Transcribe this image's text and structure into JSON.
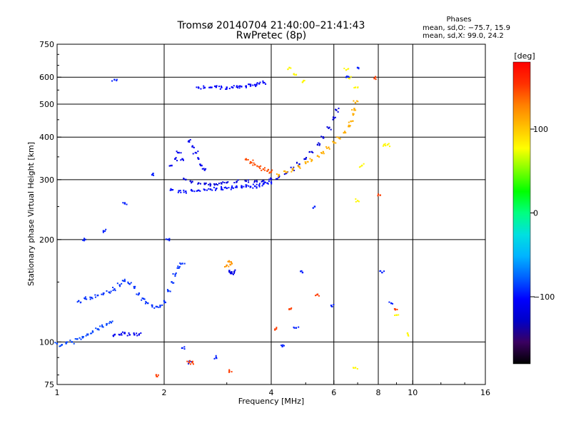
{
  "chart_data": {
    "type": "scatter",
    "title": "Tromsø 20140704 21:40:00–21:41:43",
    "subtitle": "RwPretec (8p)",
    "xlabel": "Frequency [MHz]",
    "ylabel": "Stationary phase Virtual Height [km]",
    "xscale": "log",
    "yscale": "log",
    "xlim": [
      1,
      16
    ],
    "ylim": [
      75,
      750
    ],
    "x_ticks": [
      1,
      2,
      4,
      6,
      8,
      10,
      16
    ],
    "x_tick_labels": [
      "1",
      "2",
      "4",
      "6",
      "8",
      "10",
      "16"
    ],
    "x_grid": [
      2,
      4,
      6,
      8,
      10
    ],
    "y_ticks": [
      75,
      100,
      200,
      300,
      400,
      500,
      600,
      750
    ],
    "y_tick_labels": [
      "75",
      "100",
      "200",
      "300",
      "400",
      "500",
      "600",
      "750"
    ],
    "y_grid": [
      100,
      200,
      300,
      400,
      500,
      600
    ],
    "grid": true,
    "stats": {
      "heading": "Phases",
      "line1": "mean, sd,O: −75.7, 15.9",
      "line2": "mean, sd,X:  99.0, 24.2"
    },
    "colorbar": {
      "label": "[deg]",
      "range": [
        -180,
        180
      ],
      "ticks": [
        100,
        0,
        -100
      ],
      "tick_labels": [
        "100",
        "0",
        "−100"
      ],
      "colors": [
        "#000000",
        "#3a0060",
        "#0000c8",
        "#0000ff",
        "#0060ff",
        "#00b4ff",
        "#00e0e0",
        "#00ff80",
        "#00ff00",
        "#80ff00",
        "#ffff00",
        "#ffc000",
        "#ff8000",
        "#ff3000",
        "#ff0000"
      ]
    },
    "series": [
      {
        "name": "",
        "note": "low band near 100 km",
        "color_phase": -85,
        "points": [
          [
            1.0,
            99
          ],
          [
            1.03,
            98
          ],
          [
            1.06,
            99
          ],
          [
            1.1,
            100
          ],
          [
            1.14,
            102
          ],
          [
            1.18,
            103
          ],
          [
            1.22,
            105
          ],
          [
            1.26,
            107
          ],
          [
            1.3,
            109
          ],
          [
            1.34,
            111
          ],
          [
            1.38,
            113
          ],
          [
            1.42,
            114
          ]
        ]
      },
      {
        "name": "",
        "color_phase": -90,
        "points": [
          [
            1.15,
            132
          ],
          [
            1.2,
            134
          ],
          [
            1.25,
            135
          ],
          [
            1.3,
            137
          ],
          [
            1.35,
            139
          ],
          [
            1.4,
            140
          ],
          [
            1.45,
            143
          ],
          [
            1.5,
            147
          ],
          [
            1.55,
            151
          ],
          [
            1.6,
            148
          ],
          [
            1.65,
            144
          ],
          [
            1.7,
            139
          ],
          [
            1.75,
            134
          ],
          [
            1.8,
            130
          ],
          [
            1.85,
            128
          ],
          [
            1.9,
            127
          ],
          [
            1.95,
            128
          ],
          [
            2.0,
            132
          ],
          [
            2.05,
            141
          ],
          [
            2.1,
            150
          ],
          [
            2.15,
            158
          ],
          [
            2.2,
            165
          ],
          [
            2.25,
            170
          ]
        ]
      },
      {
        "name": "",
        "color_phase": -110,
        "points": [
          [
            1.45,
            105
          ],
          [
            1.5,
            105
          ],
          [
            1.55,
            106
          ],
          [
            1.6,
            105
          ],
          [
            1.65,
            105
          ],
          [
            1.7,
            105
          ]
        ]
      },
      {
        "name": "",
        "note": "F-layer trace near 270-300 km",
        "color_phase": -100,
        "points": [
          [
            2.1,
            280
          ],
          [
            2.2,
            278
          ],
          [
            2.3,
            277
          ],
          [
            2.4,
            278
          ],
          [
            2.5,
            279
          ],
          [
            2.6,
            280
          ],
          [
            2.7,
            281
          ],
          [
            2.8,
            282
          ],
          [
            2.9,
            283
          ],
          [
            3.0,
            283
          ],
          [
            3.1,
            284
          ],
          [
            3.2,
            285
          ],
          [
            3.3,
            285
          ],
          [
            3.4,
            286
          ],
          [
            3.5,
            286
          ],
          [
            3.6,
            287
          ],
          [
            3.7,
            289
          ],
          [
            3.8,
            291
          ],
          [
            3.9,
            293
          ],
          [
            4.0,
            295
          ]
        ]
      },
      {
        "name": "",
        "color_phase": -120,
        "points": [
          [
            2.3,
            300
          ],
          [
            2.4,
            296
          ],
          [
            2.5,
            293
          ],
          [
            2.6,
            291
          ],
          [
            2.7,
            290
          ],
          [
            2.8,
            291
          ],
          [
            2.9,
            292
          ],
          [
            3.0,
            294
          ],
          [
            3.2,
            296
          ],
          [
            3.4,
            297
          ],
          [
            3.6,
            297
          ],
          [
            3.8,
            298
          ],
          [
            4.0,
            300
          ],
          [
            4.2,
            305
          ],
          [
            4.4,
            313
          ],
          [
            4.6,
            322
          ],
          [
            4.8,
            333
          ],
          [
            5.0,
            345
          ],
          [
            5.2,
            362
          ],
          [
            5.4,
            380
          ],
          [
            5.6,
            400
          ],
          [
            5.8,
            425
          ],
          [
            6.0,
            455
          ],
          [
            6.1,
            480
          ]
        ]
      },
      {
        "name": "",
        "color_phase": -110,
        "points": [
          [
            2.35,
            390
          ],
          [
            2.4,
            375
          ],
          [
            2.45,
            360
          ],
          [
            2.5,
            345
          ],
          [
            2.55,
            330
          ],
          [
            2.6,
            320
          ],
          [
            2.1,
            330
          ],
          [
            2.15,
            345
          ],
          [
            2.2,
            360
          ],
          [
            2.25,
            345
          ]
        ]
      },
      {
        "name": "",
        "color_phase": 145,
        "points": [
          [
            3.4,
            345
          ],
          [
            3.5,
            338
          ],
          [
            3.6,
            332
          ],
          [
            3.7,
            327
          ],
          [
            3.8,
            322
          ],
          [
            3.9,
            318
          ],
          [
            4.0,
            316
          ]
        ]
      },
      {
        "name": "",
        "color_phase": 110,
        "points": [
          [
            4.2,
            310
          ],
          [
            4.4,
            315
          ],
          [
            4.6,
            320
          ],
          [
            4.8,
            327
          ],
          [
            5.0,
            335
          ],
          [
            5.2,
            343
          ],
          [
            5.4,
            352
          ],
          [
            5.6,
            362
          ],
          [
            5.8,
            373
          ],
          [
            6.0,
            385
          ],
          [
            6.2,
            398
          ],
          [
            6.4,
            412
          ],
          [
            6.6,
            430
          ],
          [
            6.7,
            445
          ],
          [
            6.8,
            465
          ],
          [
            6.85,
            485
          ],
          [
            6.9,
            505
          ]
        ]
      },
      {
        "name": "",
        "note": "upper trace near 560 km",
        "color_phase": -105,
        "points": [
          [
            2.5,
            558
          ],
          [
            2.6,
            559
          ],
          [
            2.7,
            560
          ],
          [
            2.8,
            561
          ],
          [
            2.9,
            560
          ],
          [
            3.0,
            560
          ],
          [
            3.1,
            561
          ],
          [
            3.2,
            562
          ],
          [
            3.3,
            563
          ],
          [
            3.4,
            565
          ],
          [
            3.5,
            567
          ],
          [
            3.6,
            570
          ],
          [
            3.7,
            574
          ],
          [
            3.8,
            578
          ]
        ]
      },
      {
        "name": "",
        "color_phase": 120,
        "points": [
          [
            3.0,
            168
          ],
          [
            3.05,
            172
          ],
          [
            3.1,
            170
          ]
        ]
      },
      {
        "name": "",
        "color_phase": -115,
        "points": [
          [
            3.05,
            162
          ],
          [
            3.1,
            159
          ],
          [
            3.15,
            161
          ]
        ]
      },
      {
        "name": "",
        "note": "scattered points",
        "color_phase": 80,
        "points": [
          [
            4.5,
            640
          ],
          [
            4.7,
            610
          ],
          [
            4.9,
            580
          ],
          [
            6.6,
            600
          ],
          [
            6.9,
            560
          ],
          [
            7.2,
            330
          ],
          [
            7.0,
            260
          ],
          [
            8.3,
            380
          ],
          [
            8.5,
            380
          ],
          [
            9.0,
            120
          ],
          [
            9.7,
            105
          ],
          [
            6.9,
            84
          ],
          [
            6.5,
            630
          ]
        ]
      },
      {
        "name": "",
        "color_phase": -95,
        "points": [
          [
            1.2,
            200
          ],
          [
            1.35,
            212
          ],
          [
            1.45,
            590
          ],
          [
            1.55,
            255
          ],
          [
            1.85,
            310
          ],
          [
            2.05,
            200
          ],
          [
            2.25,
            96
          ],
          [
            2.35,
            87
          ],
          [
            2.8,
            90
          ],
          [
            4.3,
            97
          ],
          [
            4.7,
            110
          ],
          [
            4.9,
            160
          ],
          [
            5.3,
            250
          ],
          [
            5.9,
            128
          ],
          [
            6.5,
            600
          ],
          [
            7.0,
            640
          ],
          [
            8.2,
            160
          ],
          [
            8.7,
            130
          ]
        ]
      },
      {
        "name": "",
        "color_phase": 150,
        "points": [
          [
            2.35,
            87
          ],
          [
            2.4,
            87
          ],
          [
            3.05,
            82
          ],
          [
            4.1,
            109
          ],
          [
            4.5,
            125
          ],
          [
            5.4,
            138
          ],
          [
            7.8,
            595
          ],
          [
            8.1,
            270
          ],
          [
            8.9,
            125
          ],
          [
            1.9,
            80
          ]
        ]
      }
    ]
  }
}
